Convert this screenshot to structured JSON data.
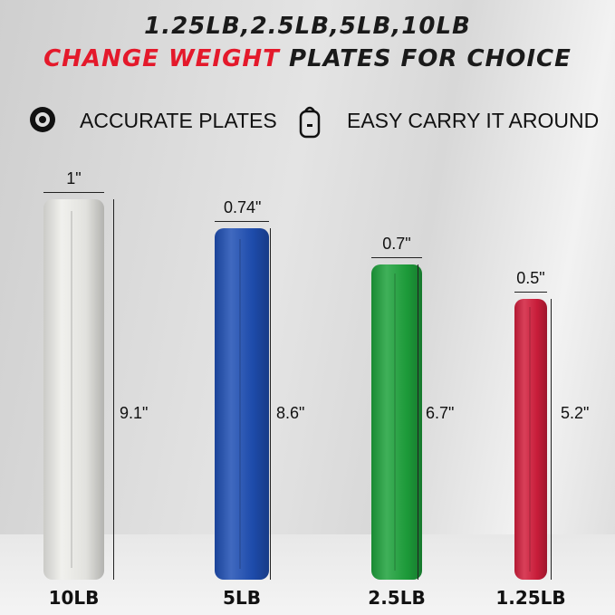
{
  "header": {
    "line1": "1.25LB,2.5LB,5LB,10LB",
    "line2_red": "CHANGE WEIGHT",
    "line2_rest": " PLATES FOR CHOICE"
  },
  "features": [
    {
      "icon": "weight-plate-icon",
      "label": "ACCURATE PLATES"
    },
    {
      "icon": "backpack-icon",
      "label": "EASY CARRY IT AROUND"
    }
  ],
  "plates": [
    {
      "weight": "10LB",
      "thickness": "1\"",
      "diameter": "9.1\"",
      "color": "#eeeeea"
    },
    {
      "weight": "5LB",
      "thickness": "0.74\"",
      "diameter": "8.6\"",
      "color": "#1f4fb4"
    },
    {
      "weight": "2.5LB",
      "thickness": "0.7\"",
      "diameter": "6.7\"",
      "color": "#1ea23c"
    },
    {
      "weight": "1.25LB",
      "thickness": "0.5\"",
      "diameter": "5.2\"",
      "color": "#d21e3c"
    }
  ]
}
